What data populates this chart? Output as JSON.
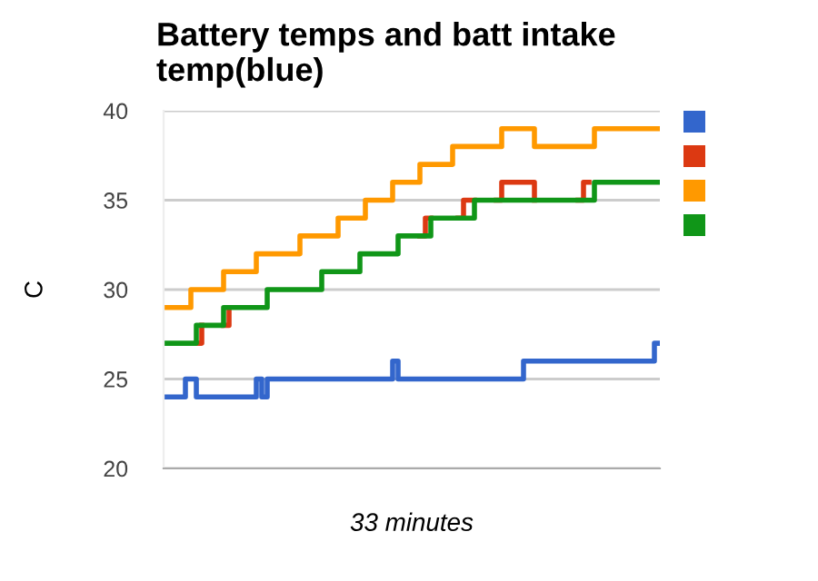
{
  "chart_data": {
    "type": "step",
    "title": "Battery temps and batt intake temp(blue)",
    "xlabel": "33 minutes",
    "ylabel": "C",
    "categories": [
      null,
      null,
      null,
      null,
      null,
      null,
      null,
      null,
      null,
      null,
      null,
      null,
      null,
      null,
      null,
      null,
      null,
      null,
      null,
      null,
      null,
      null,
      null,
      null,
      null,
      null,
      null,
      null,
      null,
      null,
      null,
      null,
      null,
      null,
      null,
      null,
      null,
      null,
      null,
      null,
      null,
      null,
      null,
      null,
      null,
      null,
      null,
      null,
      null,
      null,
      null,
      null,
      null,
      null,
      null,
      null,
      null,
      null,
      null,
      null,
      null,
      null,
      null,
      null,
      null,
      null,
      null,
      null,
      null,
      null,
      null,
      null,
      null,
      null,
      null,
      null,
      null,
      null,
      null,
      null,
      null,
      null,
      null,
      null,
      null,
      null,
      null,
      null,
      null,
      null,
      null,
      null
    ],
    "ylim": [
      20,
      40
    ],
    "yticks": [
      20,
      25,
      30,
      35,
      40
    ],
    "grid": "y",
    "series": [
      {
        "color": "#3366cc",
        "values": [
          24,
          24,
          24,
          24,
          25,
          25,
          24,
          24,
          24,
          24,
          24,
          24,
          24,
          24,
          24,
          24,
          24,
          25,
          24,
          25,
          25,
          25,
          25,
          25,
          25,
          25,
          25,
          25,
          25,
          25,
          25,
          25,
          25,
          25,
          25,
          25,
          25,
          25,
          25,
          25,
          25,
          25,
          26,
          25,
          25,
          25,
          25,
          25,
          25,
          25,
          25,
          25,
          25,
          25,
          25,
          25,
          25,
          25,
          25,
          25,
          25,
          25,
          25,
          25,
          25,
          25,
          26,
          26,
          26,
          26,
          26,
          26,
          26,
          26,
          26,
          26,
          26,
          26,
          26,
          26,
          26,
          26,
          26,
          26,
          26,
          26,
          26,
          26,
          26,
          26,
          27,
          27
        ]
      },
      {
        "color": "#dc3912",
        "values": [
          null,
          null,
          null,
          null,
          null,
          null,
          27,
          28,
          null,
          null,
          null,
          28,
          29,
          null,
          null,
          null,
          null,
          null,
          null,
          null,
          null,
          null,
          null,
          null,
          null,
          null,
          null,
          null,
          null,
          null,
          null,
          null,
          null,
          null,
          null,
          null,
          null,
          null,
          null,
          null,
          null,
          null,
          null,
          null,
          null,
          null,
          null,
          33,
          34,
          34,
          null,
          null,
          null,
          null,
          34,
          35,
          35,
          35,
          null,
          null,
          null,
          35,
          36,
          36,
          36,
          36,
          36,
          36,
          35,
          null,
          null,
          null,
          null,
          null,
          null,
          null,
          35,
          36,
          36,
          null,
          null,
          null,
          null,
          null,
          null,
          null,
          null,
          null,
          null,
          null,
          null,
          null
        ]
      },
      {
        "color": "#ff9900",
        "values": [
          29,
          29,
          29,
          29,
          29,
          30,
          30,
          30,
          30,
          30,
          30,
          31,
          31,
          31,
          31,
          31,
          31,
          32,
          32,
          32,
          32,
          32,
          32,
          32,
          32,
          33,
          33,
          33,
          33,
          33,
          33,
          33,
          34,
          34,
          34,
          34,
          34,
          35,
          35,
          35,
          35,
          35,
          36,
          36,
          36,
          36,
          36,
          37,
          37,
          37,
          37,
          37,
          37,
          38,
          38,
          38,
          38,
          38,
          38,
          38,
          38,
          38,
          39,
          39,
          39,
          39,
          39,
          39,
          38,
          38,
          38,
          38,
          38,
          38,
          38,
          38,
          38,
          38,
          38,
          39,
          39,
          39,
          39,
          39,
          39,
          39,
          39,
          39,
          39,
          39,
          39,
          39
        ]
      },
      {
        "color": "#109618",
        "values": [
          27,
          27,
          27,
          27,
          27,
          27,
          28,
          28,
          28,
          28,
          28,
          29,
          29,
          29,
          29,
          29,
          29,
          29,
          29,
          30,
          30,
          30,
          30,
          30,
          30,
          30,
          30,
          30,
          30,
          31,
          31,
          31,
          31,
          31,
          31,
          31,
          32,
          32,
          32,
          32,
          32,
          32,
          32,
          33,
          33,
          33,
          33,
          33,
          33,
          34,
          34,
          34,
          34,
          34,
          34,
          34,
          34,
          35,
          35,
          35,
          35,
          35,
          35,
          35,
          35,
          35,
          35,
          35,
          35,
          35,
          35,
          35,
          35,
          35,
          35,
          35,
          35,
          35,
          35,
          36,
          36,
          36,
          36,
          36,
          36,
          36,
          36,
          36,
          36,
          36,
          36,
          36
        ]
      }
    ]
  }
}
